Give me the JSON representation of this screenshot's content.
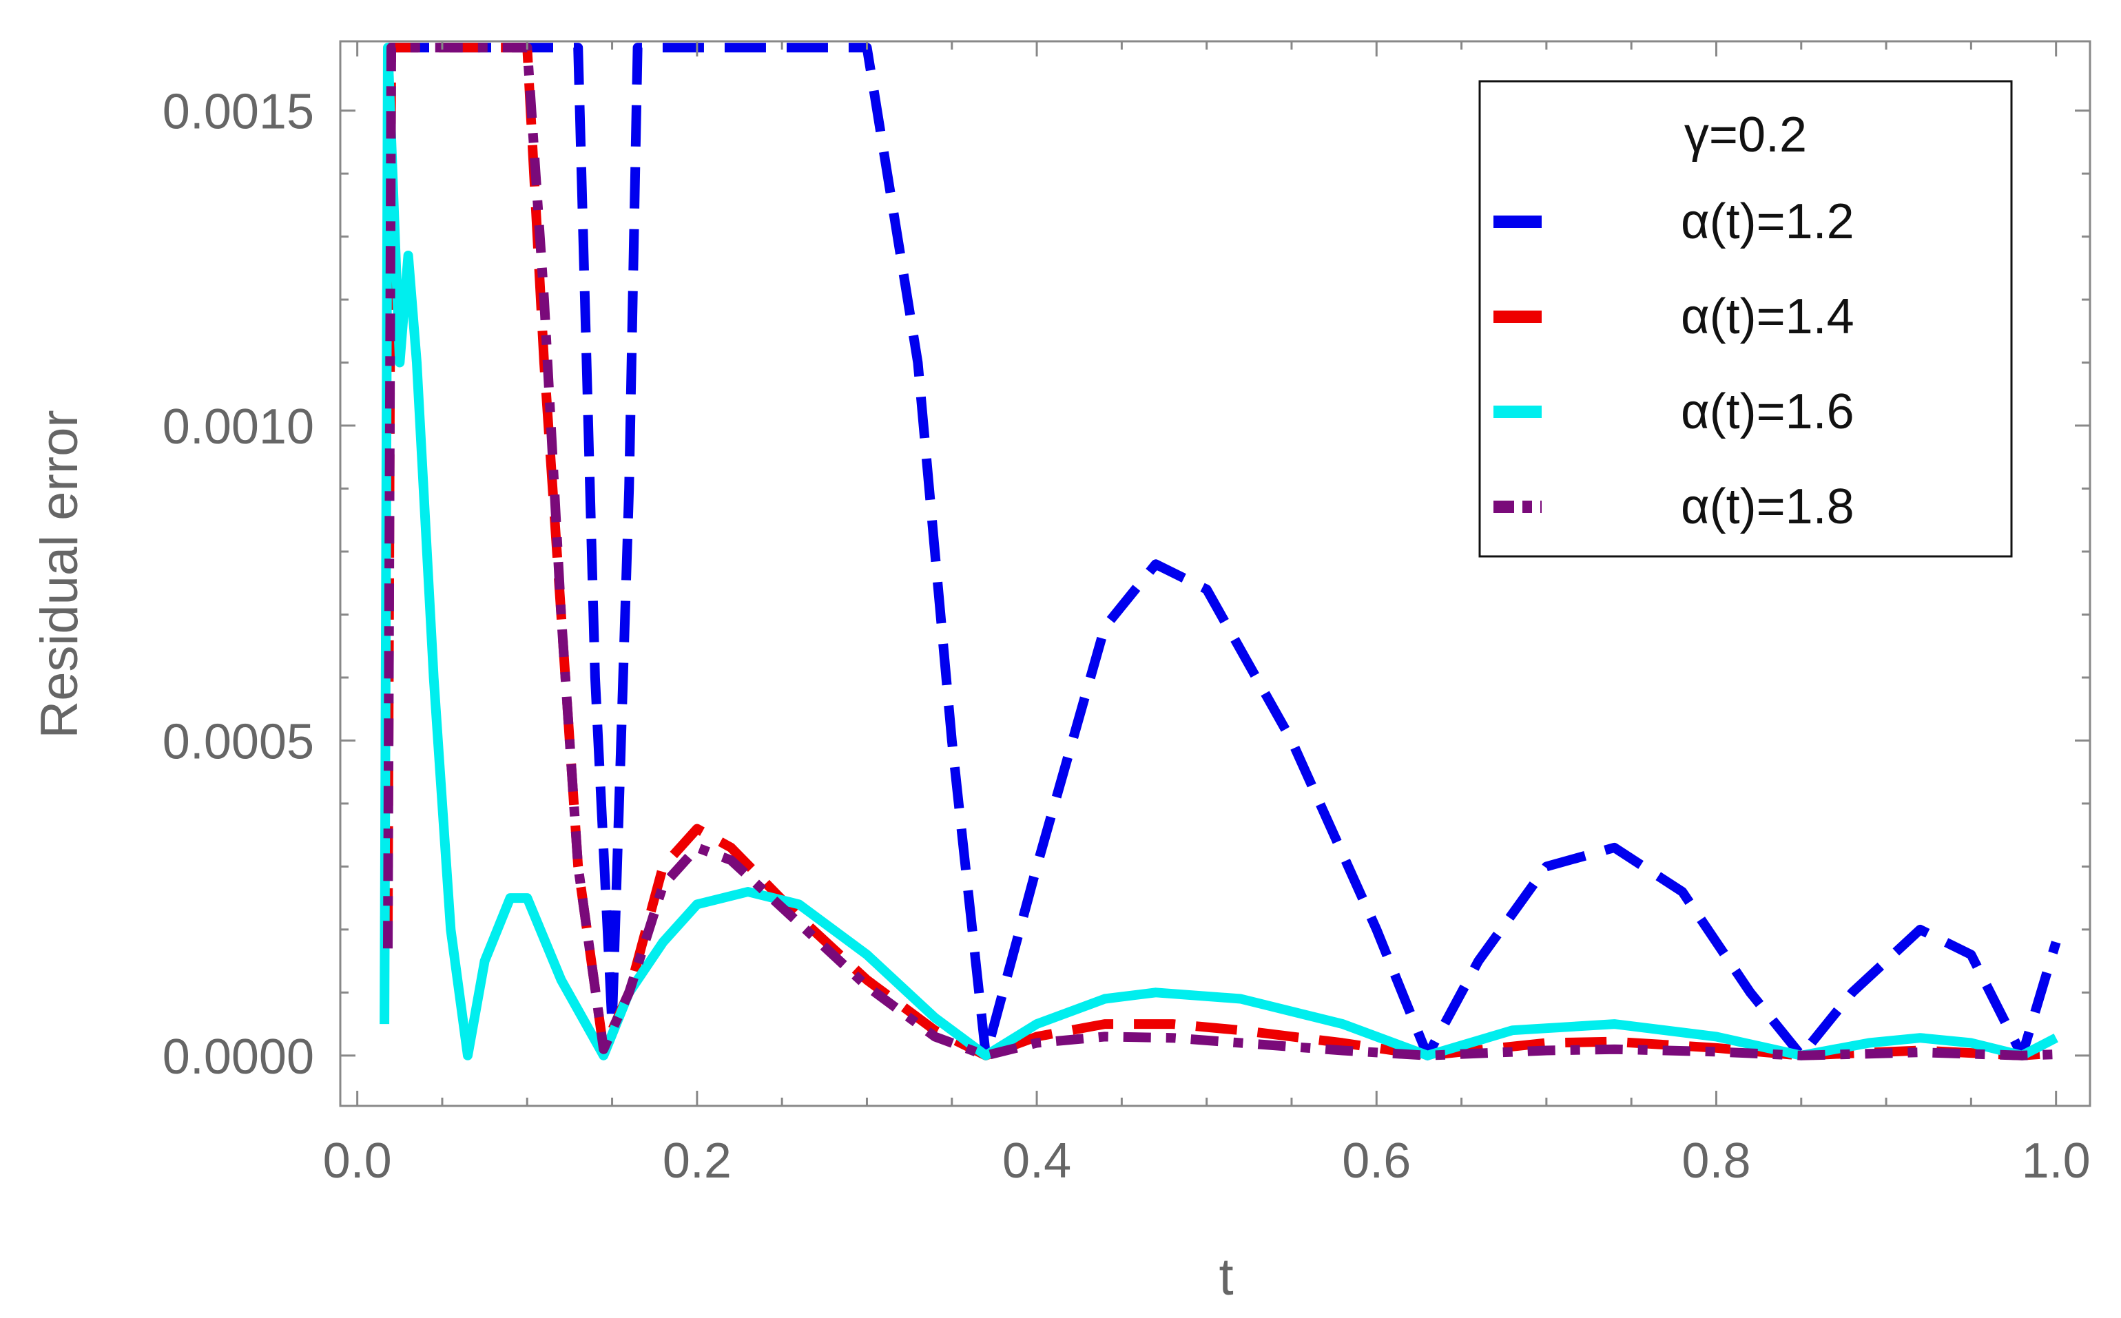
{
  "chart_data": {
    "type": "line",
    "title": "",
    "xlabel": "t",
    "ylabel": "Residual error",
    "xlim": [
      -0.01,
      1.02
    ],
    "ylim": [
      -8e-05,
      0.00161
    ],
    "xticks": [
      0.0,
      0.2,
      0.4,
      0.6,
      0.8,
      1.0
    ],
    "xtick_labels": [
      "0.0",
      "0.2",
      "0.4",
      "0.6",
      "0.8",
      "1.0"
    ],
    "yticks": [
      0.0,
      0.0005,
      0.001,
      0.0015
    ],
    "ytick_labels": [
      "0.0000",
      "0.0005",
      "0.0010",
      "0.0015"
    ],
    "grid": false,
    "legend": {
      "position": "top-right",
      "title": "γ=0.2"
    },
    "series": [
      {
        "name": "α(t)=1.2",
        "color": "#0000ee",
        "style": "dashed",
        "points": [
          [
            0.018,
            0.0016
          ],
          [
            0.08,
            0.0016
          ],
          [
            0.13,
            0.0016
          ],
          [
            0.14,
            0.0006
          ],
          [
            0.15,
            5e-05
          ],
          [
            0.16,
            0.0009
          ],
          [
            0.165,
            0.0016
          ],
          [
            0.3,
            0.0016
          ],
          [
            0.33,
            0.0011
          ],
          [
            0.35,
            0.0005
          ],
          [
            0.37,
            0.0
          ],
          [
            0.4,
            0.0003
          ],
          [
            0.44,
            0.00068
          ],
          [
            0.47,
            0.00078
          ],
          [
            0.5,
            0.00074
          ],
          [
            0.55,
            0.0005
          ],
          [
            0.6,
            0.0002
          ],
          [
            0.63,
            0.0
          ],
          [
            0.66,
            0.00015
          ],
          [
            0.7,
            0.0003
          ],
          [
            0.74,
            0.00033
          ],
          [
            0.78,
            0.00026
          ],
          [
            0.82,
            0.0001
          ],
          [
            0.85,
            0.0
          ],
          [
            0.88,
            0.0001
          ],
          [
            0.92,
            0.0002
          ],
          [
            0.95,
            0.00016
          ],
          [
            0.98,
            0.0
          ],
          [
            1.0,
            0.00018
          ]
        ]
      },
      {
        "name": "α(t)=1.4",
        "color": "#ee0000",
        "style": "dashed",
        "points": [
          [
            0.018,
            0.0002
          ],
          [
            0.02,
            0.0016
          ],
          [
            0.04,
            0.0016
          ],
          [
            0.1,
            0.0016
          ],
          [
            0.11,
            0.0011
          ],
          [
            0.12,
            0.0007
          ],
          [
            0.13,
            0.0003
          ],
          [
            0.145,
            1e-05
          ],
          [
            0.16,
            0.0001
          ],
          [
            0.18,
            0.0003
          ],
          [
            0.2,
            0.00036
          ],
          [
            0.22,
            0.00033
          ],
          [
            0.26,
            0.00022
          ],
          [
            0.3,
            0.00012
          ],
          [
            0.34,
            4e-05
          ],
          [
            0.37,
            0.0
          ],
          [
            0.4,
            3e-05
          ],
          [
            0.44,
            5e-05
          ],
          [
            0.48,
            5e-05
          ],
          [
            0.52,
            4e-05
          ],
          [
            0.58,
            2e-05
          ],
          [
            0.63,
            0.0
          ],
          [
            0.7,
            2e-05
          ],
          [
            0.74,
            2.2e-05
          ],
          [
            0.8,
            1.2e-05
          ],
          [
            0.85,
            0.0
          ],
          [
            0.92,
            8e-06
          ],
          [
            0.98,
            0.0
          ],
          [
            1.0,
            4e-06
          ]
        ]
      },
      {
        "name": "α(t)=1.6",
        "color": "#00eeee",
        "style": "solid",
        "points": [
          [
            0.016,
            5e-05
          ],
          [
            0.018,
            0.0016
          ],
          [
            0.025,
            0.0011
          ],
          [
            0.03,
            0.00127
          ],
          [
            0.035,
            0.0011
          ],
          [
            0.045,
            0.0006
          ],
          [
            0.055,
            0.0002
          ],
          [
            0.065,
            0.0
          ],
          [
            0.075,
            0.00015
          ],
          [
            0.09,
            0.00025
          ],
          [
            0.1,
            0.00025
          ],
          [
            0.12,
            0.00012
          ],
          [
            0.145,
            0.0
          ],
          [
            0.16,
            0.0001
          ],
          [
            0.18,
            0.00018
          ],
          [
            0.2,
            0.00024
          ],
          [
            0.23,
            0.00026
          ],
          [
            0.26,
            0.00024
          ],
          [
            0.3,
            0.00016
          ],
          [
            0.34,
            6e-05
          ],
          [
            0.37,
            0.0
          ],
          [
            0.4,
            5e-05
          ],
          [
            0.44,
            9e-05
          ],
          [
            0.47,
            0.0001
          ],
          [
            0.52,
            9e-05
          ],
          [
            0.58,
            5e-05
          ],
          [
            0.63,
            0.0
          ],
          [
            0.68,
            4e-05
          ],
          [
            0.74,
            5e-05
          ],
          [
            0.8,
            3e-05
          ],
          [
            0.85,
            0.0
          ],
          [
            0.89,
            2e-05
          ],
          [
            0.92,
            2.8e-05
          ],
          [
            0.95,
            2e-05
          ],
          [
            0.98,
            0.0
          ],
          [
            1.0,
            2.8e-05
          ]
        ]
      },
      {
        "name": "α(t)=1.8",
        "color": "#7a0a7a",
        "style": "dashdot",
        "points": [
          [
            0.018,
            0.00017
          ],
          [
            0.02,
            0.0016
          ],
          [
            0.03,
            0.0016
          ],
          [
            0.1,
            0.0016
          ],
          [
            0.11,
            0.0012
          ],
          [
            0.12,
            0.0007
          ],
          [
            0.13,
            0.0003
          ],
          [
            0.145,
            1e-05
          ],
          [
            0.16,
            0.0001
          ],
          [
            0.18,
            0.00027
          ],
          [
            0.2,
            0.00033
          ],
          [
            0.22,
            0.00031
          ],
          [
            0.26,
            0.00021
          ],
          [
            0.3,
            0.00011
          ],
          [
            0.34,
            3e-05
          ],
          [
            0.37,
            0.0
          ],
          [
            0.4,
            2e-05
          ],
          [
            0.44,
            3e-05
          ],
          [
            0.48,
            2.8e-05
          ],
          [
            0.52,
            2e-05
          ],
          [
            0.58,
            8e-06
          ],
          [
            0.63,
            0.0
          ],
          [
            0.7,
            8e-06
          ],
          [
            0.74,
            1e-05
          ],
          [
            0.8,
            6e-06
          ],
          [
            0.85,
            0.0
          ],
          [
            0.92,
            5e-06
          ],
          [
            0.98,
            0.0
          ],
          [
            1.0,
            2e-06
          ]
        ]
      }
    ]
  }
}
